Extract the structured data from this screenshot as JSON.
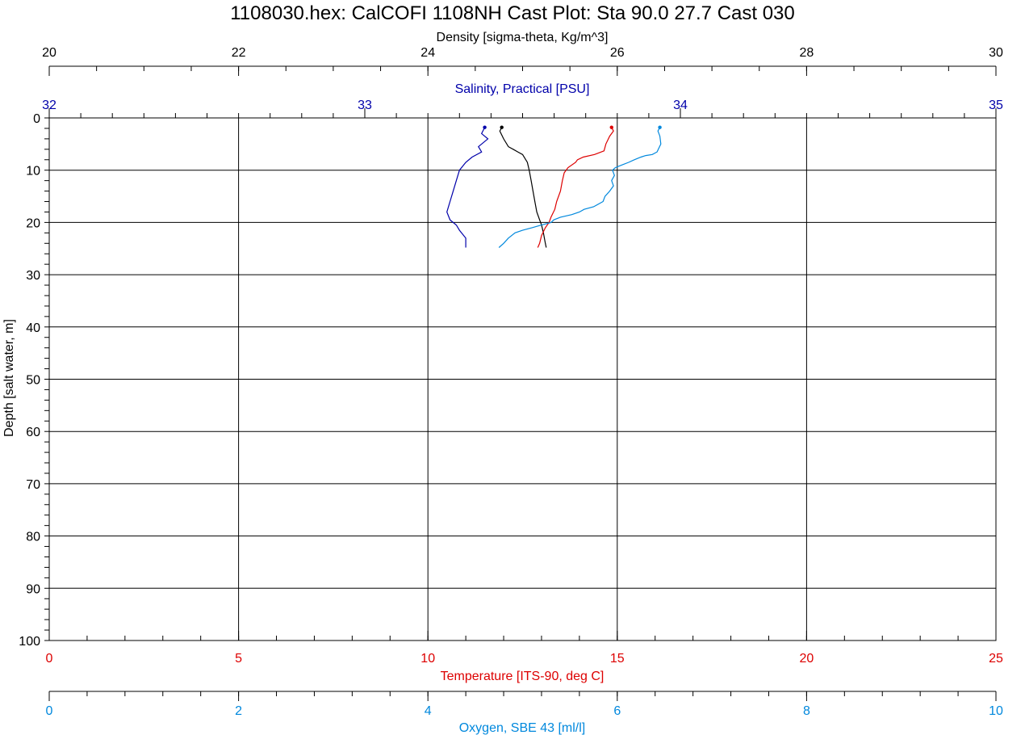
{
  "chart_data": {
    "type": "line",
    "title": "1108030.hex: CalCOFI 1108NH Cast Plot: Sta 90.0 27.7 Cast 030",
    "ylabel": "Depth [salt water, m]",
    "ylim": [
      0,
      100
    ],
    "y_inverted": true,
    "y_ticks": [
      "0",
      "10",
      "20",
      "30",
      "40",
      "50",
      "60",
      "70",
      "80",
      "90",
      "100"
    ],
    "grid": true,
    "axes": {
      "density": {
        "label": "Density [sigma-theta, Kg/m^3]",
        "position": "top",
        "range": [
          20,
          30
        ],
        "ticks": [
          "20",
          "22",
          "24",
          "26",
          "28",
          "30"
        ],
        "color": "#000000"
      },
      "salinity": {
        "label": "Salinity, Practical [PSU]",
        "position": "top",
        "range": [
          32,
          35
        ],
        "ticks": [
          "32",
          "33",
          "34",
          "35"
        ],
        "color": "#0000aa"
      },
      "temperature": {
        "label": "Temperature [ITS-90, deg C]",
        "position": "bottom",
        "range": [
          0,
          25
        ],
        "ticks": [
          "0",
          "5",
          "10",
          "15",
          "20",
          "25"
        ],
        "color": "#dd0000"
      },
      "oxygen": {
        "label": "Oxygen, SBE 43 [ml/l]",
        "position": "bottom",
        "range": [
          0,
          10
        ],
        "ticks": [
          "0",
          "2",
          "4",
          "6",
          "8",
          "10"
        ],
        "color": "#0088dd"
      }
    },
    "series": [
      {
        "axis": "salinity",
        "color": "#0000aa",
        "points": [
          [
            33.38,
            1.8
          ],
          [
            33.37,
            3
          ],
          [
            33.39,
            4
          ],
          [
            33.36,
            5.5
          ],
          [
            33.37,
            6.5
          ],
          [
            33.34,
            7.5
          ],
          [
            33.32,
            8.5
          ],
          [
            33.3,
            10
          ],
          [
            33.29,
            12
          ],
          [
            33.28,
            14
          ],
          [
            33.27,
            16
          ],
          [
            33.26,
            18
          ],
          [
            33.27,
            19.5
          ],
          [
            33.29,
            20.5
          ],
          [
            33.3,
            21.5
          ],
          [
            33.32,
            23
          ],
          [
            33.32,
            24.8
          ]
        ]
      },
      {
        "axis": "density",
        "color": "#000000",
        "points": [
          [
            24.78,
            1.8
          ],
          [
            24.76,
            2.5
          ],
          [
            24.8,
            4
          ],
          [
            24.85,
            5.5
          ],
          [
            24.9,
            6
          ],
          [
            24.95,
            6.5
          ],
          [
            25.0,
            7
          ],
          [
            25.05,
            8.5
          ],
          [
            25.07,
            10
          ],
          [
            25.09,
            12
          ],
          [
            25.11,
            14
          ],
          [
            25.13,
            16
          ],
          [
            25.15,
            18
          ],
          [
            25.18,
            19.5
          ],
          [
            25.2,
            20.5
          ],
          [
            25.22,
            22
          ],
          [
            25.24,
            24
          ],
          [
            25.25,
            24.8
          ]
        ]
      },
      {
        "axis": "temperature",
        "color": "#dd0000",
        "points": [
          [
            14.85,
            1.8
          ],
          [
            14.9,
            2.5
          ],
          [
            14.8,
            3.5
          ],
          [
            14.7,
            5
          ],
          [
            14.65,
            6.3
          ],
          [
            14.4,
            7
          ],
          [
            14.1,
            7.5
          ],
          [
            13.95,
            8
          ],
          [
            13.9,
            8.5
          ],
          [
            13.7,
            9.5
          ],
          [
            13.6,
            10.5
          ],
          [
            13.55,
            12
          ],
          [
            13.5,
            14
          ],
          [
            13.4,
            16
          ],
          [
            13.35,
            17.5
          ],
          [
            13.25,
            19
          ],
          [
            13.2,
            20
          ],
          [
            13.1,
            21
          ],
          [
            13.0,
            22.5
          ],
          [
            12.95,
            24
          ],
          [
            12.9,
            24.8
          ]
        ]
      },
      {
        "axis": "oxygen",
        "color": "#0088dd",
        "points": [
          [
            6.45,
            1.8
          ],
          [
            6.43,
            2.5
          ],
          [
            6.45,
            3.5
          ],
          [
            6.46,
            5
          ],
          [
            6.42,
            6.5
          ],
          [
            6.37,
            7
          ],
          [
            6.3,
            7.2
          ],
          [
            6.25,
            7.5
          ],
          [
            6.18,
            8
          ],
          [
            6.12,
            8.5
          ],
          [
            6.05,
            9
          ],
          [
            5.98,
            9.5
          ],
          [
            5.95,
            10
          ],
          [
            5.97,
            11
          ],
          [
            5.94,
            12
          ],
          [
            5.96,
            13
          ],
          [
            5.92,
            14
          ],
          [
            5.87,
            15
          ],
          [
            5.85,
            16
          ],
          [
            5.75,
            17
          ],
          [
            5.65,
            17.5
          ],
          [
            5.6,
            18
          ],
          [
            5.52,
            18.5
          ],
          [
            5.4,
            19
          ],
          [
            5.33,
            19.5
          ],
          [
            5.3,
            20
          ],
          [
            5.2,
            20.5
          ],
          [
            5.1,
            21
          ],
          [
            5.0,
            21.5
          ],
          [
            4.92,
            22
          ],
          [
            4.85,
            23
          ],
          [
            4.8,
            24
          ],
          [
            4.75,
            24.8
          ]
        ]
      }
    ]
  }
}
